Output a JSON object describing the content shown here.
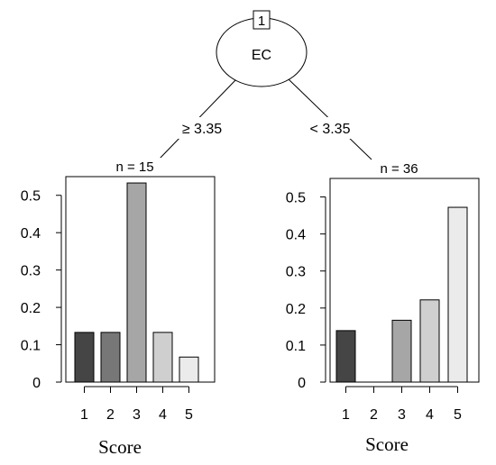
{
  "root": {
    "id": "1",
    "variable": "EC"
  },
  "edges": {
    "left": "≥ 3.35",
    "right": "< 3.35"
  },
  "chart_data": [
    {
      "type": "bar",
      "title": "n = 15",
      "categories": [
        "1",
        "2",
        "3",
        "4",
        "5"
      ],
      "values": [
        0.133,
        0.133,
        0.533,
        0.133,
        0.067
      ],
      "colors": [
        "#454545",
        "#777777",
        "#a6a6a6",
        "#cfcfcf",
        "#ebebeb"
      ],
      "xlabel": "Score",
      "ylabel": "",
      "ylim": [
        0,
        0.55
      ],
      "yticks": [
        "0",
        "0.1",
        "0.2",
        "0.3",
        "0.4",
        "0.5"
      ],
      "grid": false
    },
    {
      "type": "bar",
      "title": "n = 36",
      "categories": [
        "1",
        "2",
        "3",
        "4",
        "5"
      ],
      "values": [
        0.139,
        0.0,
        0.167,
        0.222,
        0.472
      ],
      "colors": [
        "#454545",
        "#777777",
        "#a6a6a6",
        "#cfcfcf",
        "#ebebeb"
      ],
      "xlabel": "Score",
      "ylabel": "",
      "ylim": [
        0,
        0.55
      ],
      "yticks": [
        "0",
        "0.1",
        "0.2",
        "0.3",
        "0.4",
        "0.5"
      ],
      "grid": false
    }
  ]
}
